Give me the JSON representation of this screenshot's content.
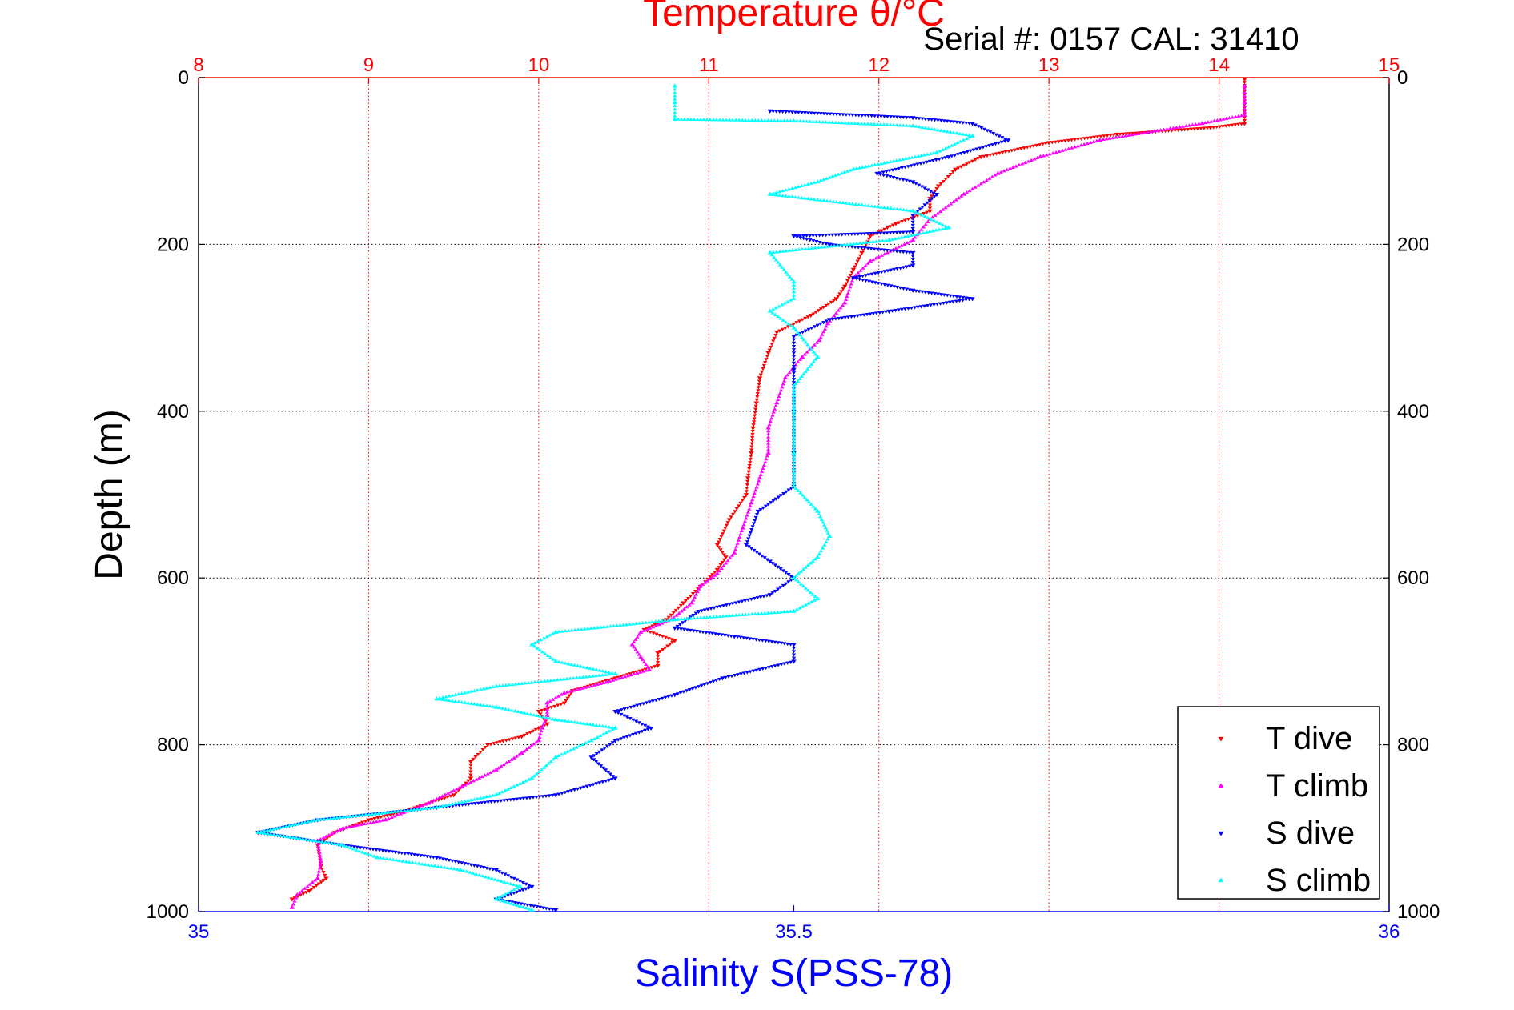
{
  "figure": {
    "serial_text": "Serial #: 0157  CAL: 31410"
  },
  "chart_data": {
    "type": "scatter",
    "title": "Temperature θ/°C",
    "xlabel": "Salinity S(PSS-78)",
    "ylabel": "Depth (m)",
    "temperature_axis": {
      "range": [
        8,
        15
      ],
      "ticks": [
        "8",
        "9",
        "10",
        "11",
        "12",
        "13",
        "14",
        "15"
      ],
      "color": "#ff0000"
    },
    "salinity_axis": {
      "range": [
        35,
        36
      ],
      "ticks": [
        "35",
        "35.5",
        "36"
      ],
      "color": "#0000ff"
    },
    "depth_axis": {
      "range": [
        0,
        1000
      ],
      "reversed": true,
      "ticks": [
        "0",
        "200",
        "400",
        "600",
        "800",
        "1000"
      ]
    },
    "grid": true,
    "legend_position": "bottom-right",
    "series": [
      {
        "name": "T dive",
        "axis": "temperature",
        "color": "#ff0000",
        "marker": "triangle-down",
        "points": [
          [
            14.15,
            2
          ],
          [
            14.15,
            20
          ],
          [
            14.15,
            40
          ],
          [
            14.15,
            55
          ],
          [
            13.95,
            60
          ],
          [
            13.4,
            68
          ],
          [
            13,
            78
          ],
          [
            12.6,
            95
          ],
          [
            12.45,
            110
          ],
          [
            12.35,
            130
          ],
          [
            12.3,
            145
          ],
          [
            12.3,
            160
          ],
          [
            12.1,
            175
          ],
          [
            11.95,
            190
          ],
          [
            11.9,
            210
          ],
          [
            11.85,
            230
          ],
          [
            11.8,
            250
          ],
          [
            11.75,
            265
          ],
          [
            11.6,
            285
          ],
          [
            11.4,
            305
          ],
          [
            11.35,
            330
          ],
          [
            11.3,
            360
          ],
          [
            11.28,
            390
          ],
          [
            11.26,
            420
          ],
          [
            11.25,
            450
          ],
          [
            11.23,
            480
          ],
          [
            11.22,
            500
          ],
          [
            11.12,
            530
          ],
          [
            11.05,
            560
          ],
          [
            11.1,
            575
          ],
          [
            11.05,
            590
          ],
          [
            10.95,
            610
          ],
          [
            10.85,
            630
          ],
          [
            10.75,
            650
          ],
          [
            10.62,
            662
          ],
          [
            10.8,
            675
          ],
          [
            10.7,
            690
          ],
          [
            10.7,
            705
          ],
          [
            10.45,
            720
          ],
          [
            10.2,
            735
          ],
          [
            10.15,
            750
          ],
          [
            10.0,
            760
          ],
          [
            10.05,
            775
          ],
          [
            9.9,
            790
          ],
          [
            9.7,
            800
          ],
          [
            9.6,
            820
          ],
          [
            9.6,
            840
          ],
          [
            9.5,
            860
          ],
          [
            9.2,
            880
          ],
          [
            9.0,
            890
          ],
          [
            8.8,
            905
          ],
          [
            8.7,
            920
          ],
          [
            8.72,
            945
          ],
          [
            8.75,
            960
          ],
          [
            8.65,
            975
          ],
          [
            8.55,
            985
          ]
        ]
      },
      {
        "name": "T climb",
        "axis": "temperature",
        "color": "#ff00ff",
        "marker": "triangle-up",
        "points": [
          [
            8.55,
            995
          ],
          [
            8.58,
            980
          ],
          [
            8.7,
            960
          ],
          [
            8.72,
            940
          ],
          [
            8.7,
            915
          ],
          [
            8.85,
            900
          ],
          [
            9.1,
            890
          ],
          [
            9.35,
            870
          ],
          [
            9.55,
            850
          ],
          [
            9.75,
            830
          ],
          [
            9.9,
            810
          ],
          [
            10.0,
            795
          ],
          [
            10.02,
            780
          ],
          [
            10.05,
            765
          ],
          [
            10.05,
            750
          ],
          [
            10.15,
            738
          ],
          [
            10.4,
            725
          ],
          [
            10.65,
            710
          ],
          [
            10.6,
            695
          ],
          [
            10.55,
            680
          ],
          [
            10.6,
            665
          ],
          [
            10.78,
            650
          ],
          [
            10.9,
            630
          ],
          [
            10.95,
            610
          ],
          [
            11.05,
            595
          ],
          [
            11.15,
            570
          ],
          [
            11.2,
            540
          ],
          [
            11.25,
            510
          ],
          [
            11.3,
            480
          ],
          [
            11.35,
            450
          ],
          [
            11.35,
            420
          ],
          [
            11.4,
            390
          ],
          [
            11.45,
            360
          ],
          [
            11.55,
            335
          ],
          [
            11.65,
            315
          ],
          [
            11.7,
            295
          ],
          [
            11.8,
            270
          ],
          [
            11.85,
            240
          ],
          [
            11.95,
            220
          ],
          [
            12.2,
            195
          ],
          [
            12.3,
            170
          ],
          [
            12.5,
            140
          ],
          [
            12.7,
            115
          ],
          [
            12.95,
            95
          ],
          [
            13.3,
            75
          ],
          [
            13.9,
            55
          ],
          [
            14.15,
            45
          ],
          [
            14.15,
            30
          ],
          [
            14.15,
            10
          ]
        ]
      },
      {
        "name": "S dive",
        "axis": "salinity",
        "color": "#0000ff",
        "marker": "triangle-down",
        "points": [
          [
            35.48,
            40
          ],
          [
            35.6,
            48
          ],
          [
            35.65,
            55
          ],
          [
            35.68,
            75
          ],
          [
            35.63,
            95
          ],
          [
            35.57,
            115
          ],
          [
            35.6,
            125
          ],
          [
            35.62,
            140
          ],
          [
            35.6,
            165
          ],
          [
            35.6,
            185
          ],
          [
            35.5,
            190
          ],
          [
            35.53,
            200
          ],
          [
            35.6,
            210
          ],
          [
            35.6,
            225
          ],
          [
            35.55,
            240
          ],
          [
            35.6,
            255
          ],
          [
            35.65,
            265
          ],
          [
            35.58,
            280
          ],
          [
            35.53,
            290
          ],
          [
            35.5,
            310
          ],
          [
            35.5,
            350
          ],
          [
            35.5,
            400
          ],
          [
            35.5,
            450
          ],
          [
            35.5,
            490
          ],
          [
            35.47,
            520
          ],
          [
            35.46,
            560
          ],
          [
            35.48,
            580
          ],
          [
            35.5,
            600
          ],
          [
            35.48,
            620
          ],
          [
            35.42,
            640
          ],
          [
            35.4,
            660
          ],
          [
            35.45,
            670
          ],
          [
            35.5,
            680
          ],
          [
            35.5,
            700
          ],
          [
            35.44,
            720
          ],
          [
            35.4,
            740
          ],
          [
            35.35,
            760
          ],
          [
            35.38,
            780
          ],
          [
            35.35,
            795
          ],
          [
            35.33,
            815
          ],
          [
            35.35,
            840
          ],
          [
            35.3,
            860
          ],
          [
            35.2,
            875
          ],
          [
            35.1,
            890
          ],
          [
            35.05,
            905
          ],
          [
            35.12,
            920
          ],
          [
            35.2,
            935
          ],
          [
            35.25,
            950
          ],
          [
            35.28,
            970
          ],
          [
            35.25,
            985
          ],
          [
            35.3,
            998
          ]
        ]
      },
      {
        "name": "S climb",
        "axis": "salinity",
        "color": "#00ffff",
        "marker": "triangle-up",
        "points": [
          [
            35.28,
            998
          ],
          [
            35.25,
            985
          ],
          [
            35.27,
            970
          ],
          [
            35.22,
            950
          ],
          [
            35.15,
            935
          ],
          [
            35.12,
            920
          ],
          [
            35.05,
            905
          ],
          [
            35.1,
            890
          ],
          [
            35.2,
            875
          ],
          [
            35.25,
            860
          ],
          [
            35.28,
            840
          ],
          [
            35.3,
            815
          ],
          [
            35.33,
            795
          ],
          [
            35.35,
            780
          ],
          [
            35.3,
            770
          ],
          [
            35.25,
            755
          ],
          [
            35.2,
            745
          ],
          [
            35.25,
            730
          ],
          [
            35.35,
            715
          ],
          [
            35.3,
            700
          ],
          [
            35.28,
            680
          ],
          [
            35.3,
            665
          ],
          [
            35.4,
            650
          ],
          [
            35.5,
            640
          ],
          [
            35.52,
            625
          ],
          [
            35.5,
            600
          ],
          [
            35.52,
            575
          ],
          [
            35.53,
            550
          ],
          [
            35.52,
            520
          ],
          [
            35.5,
            490
          ],
          [
            35.5,
            450
          ],
          [
            35.5,
            400
          ],
          [
            35.5,
            370
          ],
          [
            35.52,
            335
          ],
          [
            35.5,
            300
          ],
          [
            35.48,
            280
          ],
          [
            35.5,
            265
          ],
          [
            35.5,
            245
          ],
          [
            35.48,
            210
          ],
          [
            35.58,
            195
          ],
          [
            35.63,
            180
          ],
          [
            35.6,
            160
          ],
          [
            35.48,
            140
          ],
          [
            35.52,
            125
          ],
          [
            35.55,
            110
          ],
          [
            35.62,
            90
          ],
          [
            35.65,
            70
          ],
          [
            35.6,
            58
          ],
          [
            35.5,
            52
          ],
          [
            35.4,
            50
          ],
          [
            35.4,
            30
          ],
          [
            35.4,
            10
          ]
        ]
      }
    ]
  }
}
